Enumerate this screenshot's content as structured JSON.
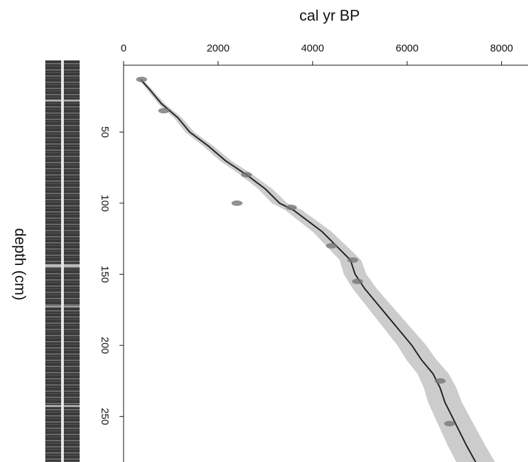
{
  "chart_data": {
    "type": "line",
    "xlabel": "cal yr BP",
    "ylabel": "depth (cm)",
    "xlim": [
      0,
      8500
    ],
    "xticks": [
      0,
      2000,
      4000,
      6000,
      8000
    ],
    "ylim": [
      3,
      282
    ],
    "yticks": [
      50,
      100,
      150,
      200,
      250
    ],
    "y_reversed": true,
    "series": [
      {
        "color": "#222222",
        "depth": [
          13,
          20,
          30,
          40,
          50,
          60,
          70,
          80,
          90,
          100,
          105,
          110,
          120,
          130,
          140,
          150,
          160,
          170,
          180,
          190,
          200,
          210,
          220,
          230,
          240,
          250,
          260,
          270,
          282
        ],
        "values": [
          360,
          550,
          800,
          1150,
          1400,
          1800,
          2150,
          2600,
          3000,
          3300,
          3600,
          3800,
          4200,
          4500,
          4800,
          4900,
          5100,
          5350,
          5600,
          5850,
          6100,
          6300,
          6550,
          6700,
          6800,
          6950,
          7100,
          7250,
          7450
        ]
      }
    ],
    "dates": {
      "color": "#777777",
      "depth": [
        13,
        35,
        80,
        100,
        103,
        130,
        140,
        155,
        225,
        255
      ],
      "values": [
        380,
        850,
        2600,
        2400,
        3550,
        4400,
        4850,
        4950,
        6700,
        6900
      ]
    }
  }
}
